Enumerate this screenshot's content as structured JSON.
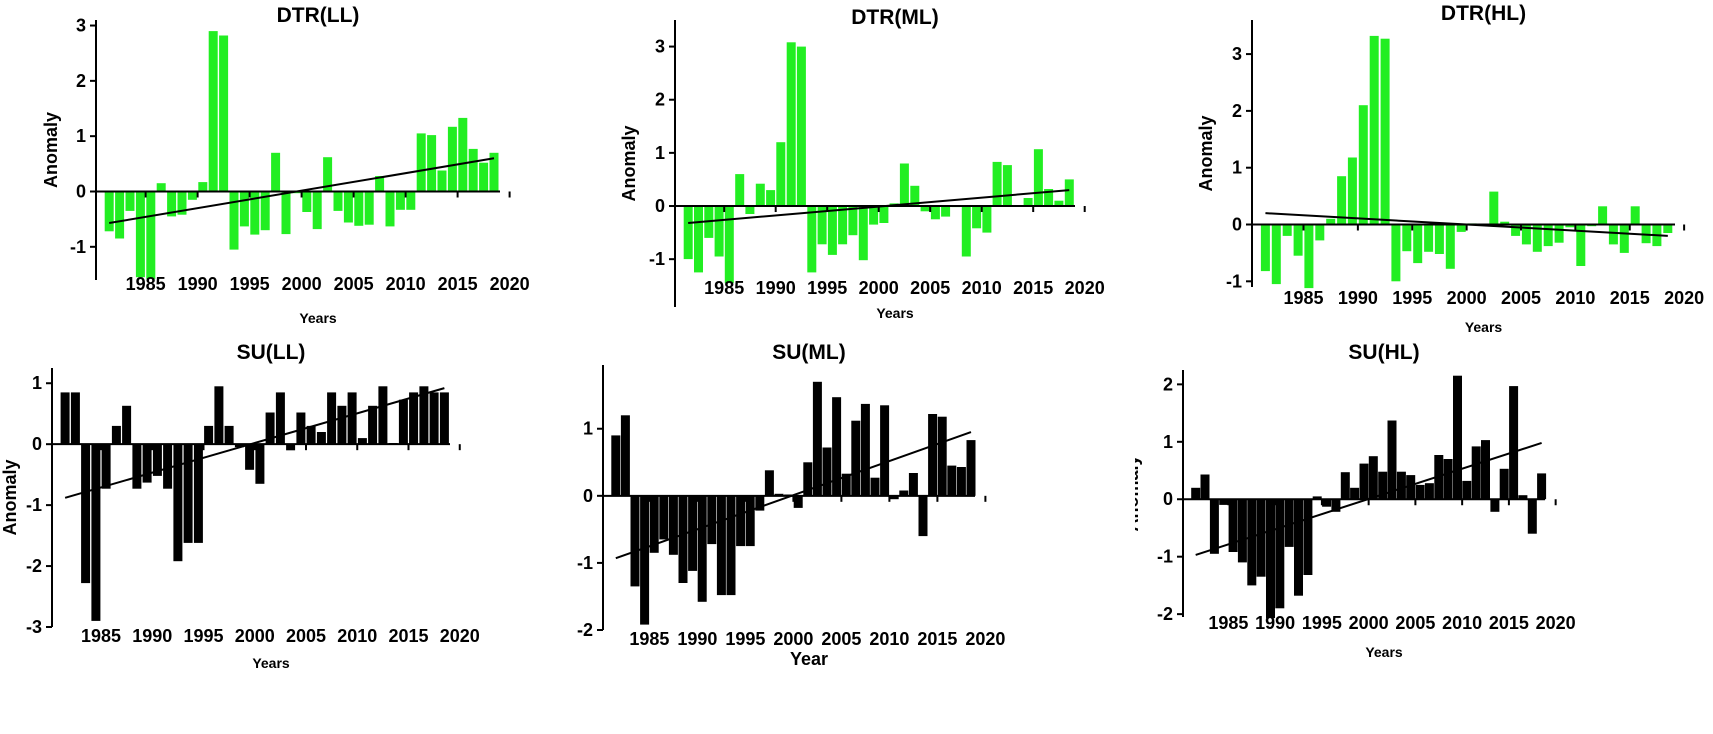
{
  "chart_data": [
    {
      "id": "dtr-ll",
      "type": "bar",
      "title": "DTR(LL)",
      "xlabel": "Years",
      "ylabel": "Anomaly",
      "color": "#22ee22",
      "x": [
        1981,
        1982,
        1983,
        1984,
        1985,
        1986,
        1987,
        1988,
        1989,
        1990,
        1991,
        1992,
        1993,
        1994,
        1995,
        1996,
        1997,
        1998,
        1999,
        2000,
        2001,
        2002,
        2003,
        2004,
        2005,
        2006,
        2007,
        2008,
        2009,
        2010,
        2011,
        2012,
        2013,
        2014,
        2015,
        2016,
        2017,
        2018
      ],
      "values": [
        -0.72,
        -0.85,
        -0.35,
        -1.55,
        -1.58,
        0.15,
        -0.45,
        -0.42,
        -0.15,
        0.17,
        2.9,
        2.82,
        -1.05,
        -0.63,
        -0.78,
        -0.7,
        0.7,
        -0.77,
        -0.03,
        -0.37,
        -0.68,
        0.62,
        -0.35,
        -0.56,
        -0.62,
        -0.6,
        0.28,
        -0.63,
        -0.33,
        -0.33,
        1.05,
        1.02,
        0.38,
        1.17,
        1.33,
        0.77,
        0.52,
        0.7
      ],
      "xticks": [
        "1985",
        "1990",
        "1995",
        "2000",
        "2005",
        "2010",
        "2015",
        "2020"
      ],
      "yticks": [
        "-1",
        "0",
        "1",
        "2",
        "3"
      ],
      "ylim": [
        -1.6,
        3.1
      ],
      "trend": {
        "from": -0.57,
        "to": 0.6
      }
    },
    {
      "id": "dtr-ml",
      "type": "bar",
      "title": "DTR(ML)",
      "xlabel": "Years",
      "ylabel": "Anomaly",
      "color": "#22ee22",
      "x": [
        1981,
        1982,
        1983,
        1984,
        1985,
        1986,
        1987,
        1988,
        1989,
        1990,
        1991,
        1992,
        1993,
        1994,
        1995,
        1996,
        1997,
        1998,
        1999,
        2000,
        2001,
        2002,
        2003,
        2004,
        2005,
        2006,
        2007,
        2008,
        2009,
        2010,
        2011,
        2012,
        2013,
        2014,
        2015,
        2016,
        2017,
        2018
      ],
      "values": [
        -1.0,
        -1.25,
        -0.6,
        -0.95,
        -1.45,
        0.6,
        -0.15,
        0.42,
        0.3,
        1.2,
        3.08,
        3.0,
        -1.25,
        -0.72,
        -0.92,
        -0.72,
        -0.55,
        -1.02,
        -0.35,
        -0.32,
        0.05,
        0.8,
        0.38,
        -0.1,
        -0.25,
        -0.2,
        -0.02,
        -0.95,
        -0.42,
        -0.5,
        0.83,
        0.77,
        0.02,
        0.15,
        1.07,
        0.32,
        0.1,
        0.5
      ],
      "xticks": [
        "1985",
        "1990",
        "1995",
        "2000",
        "2005",
        "2010",
        "2015",
        "2020"
      ],
      "yticks": [
        "-1",
        "0",
        "1",
        "2",
        "3"
      ],
      "ylim": [
        -1.9,
        3.5
      ],
      "trend": {
        "from": -0.32,
        "to": 0.3
      }
    },
    {
      "id": "dtr-hl",
      "type": "bar",
      "title": "DTR(HL)",
      "xlabel": "Years",
      "ylabel": "Anomaly",
      "color": "#22ee22",
      "x": [
        1981,
        1982,
        1983,
        1984,
        1985,
        1986,
        1987,
        1988,
        1989,
        1990,
        1991,
        1992,
        1993,
        1994,
        1995,
        1996,
        1997,
        1998,
        1999,
        2000,
        2001,
        2002,
        2003,
        2004,
        2005,
        2006,
        2007,
        2008,
        2009,
        2010,
        2011,
        2012,
        2013,
        2014,
        2015,
        2016,
        2017,
        2018
      ],
      "values": [
        -0.82,
        -1.05,
        -0.2,
        -0.55,
        -1.12,
        -0.28,
        0.1,
        0.85,
        1.18,
        2.1,
        3.32,
        3.27,
        -1.0,
        -0.47,
        -0.68,
        -0.48,
        -0.52,
        -0.78,
        -0.13,
        0.02,
        0.0,
        0.58,
        0.05,
        -0.2,
        -0.35,
        -0.48,
        -0.38,
        -0.32,
        -0.05,
        -0.73,
        -0.03,
        0.32,
        -0.35,
        -0.5,
        0.32,
        -0.33,
        -0.38,
        -0.15
      ],
      "xticks": [
        "1985",
        "1990",
        "1995",
        "2000",
        "2005",
        "2010",
        "2015",
        "2020"
      ],
      "yticks": [
        "-1",
        "0",
        "1",
        "2",
        "3"
      ],
      "ylim": [
        -1.1,
        3.6
      ],
      "trend": {
        "from": 0.2,
        "to": -0.2
      }
    },
    {
      "id": "su-ll",
      "type": "bar",
      "title": "SU(LL)",
      "xlabel": "Years",
      "ylabel": "Anomaly",
      "color": "#000000",
      "x": [
        1981,
        1982,
        1983,
        1984,
        1985,
        1986,
        1987,
        1988,
        1989,
        1990,
        1991,
        1992,
        1993,
        1994,
        1995,
        1996,
        1997,
        1998,
        1999,
        2000,
        2001,
        2002,
        2003,
        2004,
        2005,
        2006,
        2007,
        2008,
        2009,
        2010,
        2011,
        2012,
        2013,
        2014,
        2015,
        2016,
        2017,
        2018
      ],
      "values": [
        0.85,
        0.85,
        -2.28,
        -2.9,
        -0.73,
        0.3,
        0.63,
        -0.73,
        -0.63,
        -0.52,
        -0.73,
        -1.92,
        -1.62,
        -1.62,
        0.3,
        0.95,
        0.3,
        -0.05,
        -0.42,
        -0.65,
        0.52,
        0.85,
        -0.1,
        0.52,
        0.3,
        0.2,
        0.85,
        0.63,
        0.85,
        0.1,
        0.63,
        0.95,
        0.02,
        0.73,
        0.85,
        0.95,
        0.85,
        0.85
      ],
      "xticks": [
        "1985",
        "1990",
        "1995",
        "2000",
        "2005",
        "2010",
        "2015",
        "2020"
      ],
      "yticks": [
        "-3",
        "-2",
        "-1",
        "0",
        "1"
      ],
      "ylim": [
        -3.0,
        1.25
      ],
      "trend": {
        "from": -0.88,
        "to": 0.92
      }
    },
    {
      "id": "su-ml",
      "type": "bar",
      "title": "SU(ML)",
      "xlabel": "Year",
      "ylabel": "Anomaly",
      "color": "#000000",
      "x": [
        1981,
        1982,
        1983,
        1984,
        1985,
        1986,
        1987,
        1988,
        1989,
        1990,
        1991,
        1992,
        1993,
        1994,
        1995,
        1996,
        1997,
        1998,
        1999,
        2000,
        2001,
        2002,
        2003,
        2004,
        2005,
        2006,
        2007,
        2008,
        2009,
        2010,
        2011,
        2012,
        2013,
        2014,
        2015,
        2016,
        2017,
        2018
      ],
      "values": [
        0.9,
        1.2,
        -1.35,
        -1.92,
        -0.85,
        -0.65,
        -0.88,
        -1.3,
        -1.12,
        -1.58,
        -0.72,
        -1.48,
        -1.48,
        -0.75,
        -0.75,
        -0.22,
        0.38,
        0.03,
        0.02,
        -0.18,
        0.5,
        1.7,
        0.72,
        1.47,
        0.33,
        1.12,
        1.37,
        0.27,
        1.35,
        -0.05,
        0.08,
        0.34,
        -0.6,
        1.22,
        1.18,
        0.45,
        0.43,
        0.83
      ],
      "xticks": [
        "1985",
        "1990",
        "1995",
        "2000",
        "2005",
        "2010",
        "2015",
        "2020"
      ],
      "yticks": [
        "-2",
        "-1",
        "0",
        "1"
      ],
      "ylim": [
        -2.0,
        1.95
      ],
      "trend": {
        "from": -0.93,
        "to": 0.95
      }
    },
    {
      "id": "su-hl",
      "type": "bar",
      "title": "SU(HL)",
      "xlabel": "Years",
      "ylabel": "Anomaly",
      "color": "#000000",
      "x": [
        1981,
        1982,
        1983,
        1984,
        1985,
        1986,
        1987,
        1988,
        1989,
        1990,
        1991,
        1992,
        1993,
        1994,
        1995,
        1996,
        1997,
        1998,
        1999,
        2000,
        2001,
        2002,
        2003,
        2004,
        2005,
        2006,
        2007,
        2008,
        2009,
        2010,
        2011,
        2012,
        2013,
        2014,
        2015,
        2016,
        2017,
        2018
      ],
      "values": [
        0.2,
        0.43,
        -0.95,
        -0.1,
        -0.92,
        -1.1,
        -1.5,
        -1.35,
        -2.07,
        -1.9,
        -0.83,
        -1.68,
        -1.32,
        0.05,
        -0.13,
        -0.22,
        0.47,
        0.2,
        0.62,
        0.75,
        0.48,
        1.37,
        0.48,
        0.42,
        0.25,
        0.28,
        0.77,
        0.7,
        2.15,
        0.32,
        0.92,
        1.03,
        -0.22,
        0.53,
        1.97,
        0.07,
        -0.6,
        0.45
      ],
      "xticks": [
        "1985",
        "1990",
        "1995",
        "2000",
        "2005",
        "2010",
        "2015",
        "2020"
      ],
      "yticks": [
        "-2",
        "-1",
        "0",
        "1",
        "2"
      ],
      "ylim": [
        -2.05,
        2.25
      ],
      "trend": {
        "from": -0.97,
        "to": 0.98
      }
    }
  ]
}
